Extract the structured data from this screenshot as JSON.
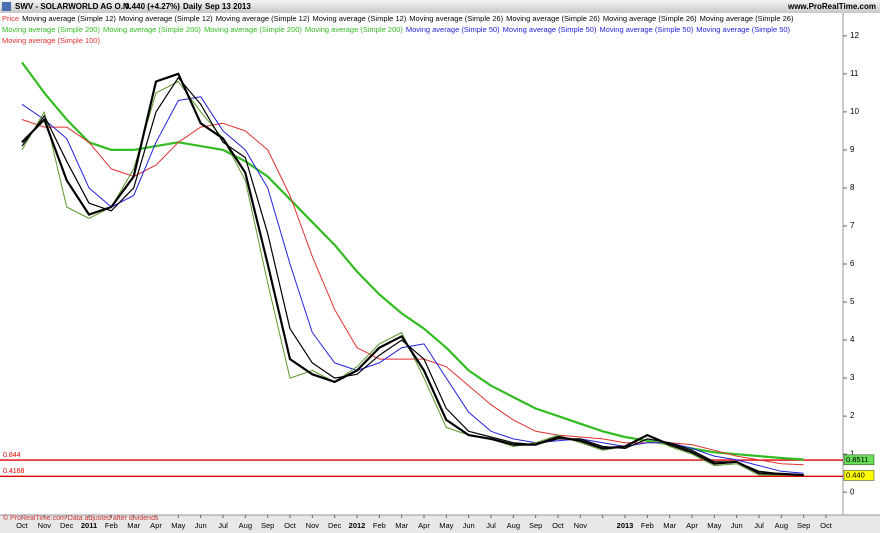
{
  "chart_data": {
    "type": "line",
    "title": "SWV - SOLARWORLD AG O.N.",
    "subtitle": "0.440 (+4.27%)",
    "period": "Daily",
    "date": "Sep 13 2013",
    "site": "www.ProRealTime.com",
    "footer": "© ProRealTime.com Data adjusted after dividends",
    "legend": [
      {
        "text": "Price",
        "color": "#e03030"
      },
      {
        "text": "Moving average (Simple 12)",
        "color": "#000000"
      },
      {
        "text": "Moving average (Simple 12)",
        "color": "#000000"
      },
      {
        "text": "Moving average (Simple 12)",
        "color": "#000000"
      },
      {
        "text": "Moving average (Simple 12)",
        "color": "#000000"
      },
      {
        "text": "Moving average (Simple 26)",
        "color": "#000000"
      },
      {
        "text": "Moving average (Simple 26)",
        "color": "#000000"
      },
      {
        "text": "Moving average (Simple 26)",
        "color": "#000000"
      },
      {
        "text": "Moving average (Simple 26)",
        "color": "#000000"
      },
      {
        "text": "Moving average (Simple 200)",
        "color": "#33bb22"
      },
      {
        "text": "Moving average (Simple 200)",
        "color": "#33bb22"
      },
      {
        "text": "Moving average (Simple 200)",
        "color": "#33bb22"
      },
      {
        "text": "Moving average (Simple 200)",
        "color": "#33bb22"
      },
      {
        "text": "Moving average (Simple 50)",
        "color": "#2222dd"
      },
      {
        "text": "Moving average (Simple 50)",
        "color": "#2222dd"
      },
      {
        "text": "Moving average (Simple 50)",
        "color": "#2222dd"
      },
      {
        "text": "Moving average (Simple 50)",
        "color": "#2222dd"
      },
      {
        "text": "Moving average (Simple 100)",
        "color": "#e03030"
      }
    ],
    "categories": [
      "Oct",
      "Nov",
      "Dec",
      "2011",
      "Feb",
      "Mar",
      "Apr",
      "May",
      "Jun",
      "Jul",
      "Aug",
      "Sep",
      "Oct",
      "Nov",
      "Dec",
      "2012",
      "Feb",
      "Mar",
      "Apr",
      "May",
      "Jun",
      "Jul",
      "Aug",
      "Sep",
      "Oct",
      "Nov",
      null,
      "2013",
      "Feb",
      "Mar",
      "Apr",
      "May",
      "Jun",
      "Jul",
      "Aug",
      "Sep",
      "Oct"
    ],
    "series": [
      {
        "name": "Moving average (Simple 200)",
        "color": "#33bb22",
        "width": 2.2,
        "values": [
          11.3,
          10.5,
          9.8,
          9.2,
          9.0,
          9.0,
          9.1,
          9.2,
          9.1,
          9.0,
          8.7,
          8.3,
          7.7,
          7.1,
          6.5,
          5.8,
          5.2,
          4.7,
          4.3,
          3.8,
          3.2,
          2.8,
          2.5,
          2.2,
          2.0,
          1.8,
          1.6,
          1.45,
          1.35,
          1.25,
          1.15,
          1.05,
          1.0,
          0.95,
          0.9,
          0.86,
          null
        ]
      },
      {
        "name": "Moving average (Simple 100)",
        "color": "#e03030",
        "width": 1,
        "values": [
          9.8,
          9.6,
          9.6,
          9.2,
          8.5,
          8.3,
          8.6,
          9.2,
          9.6,
          9.7,
          9.5,
          9.0,
          7.8,
          6.2,
          4.8,
          3.8,
          3.5,
          3.5,
          3.5,
          3.3,
          2.8,
          2.3,
          1.9,
          1.6,
          1.5,
          1.45,
          1.4,
          1.3,
          1.3,
          1.3,
          1.25,
          1.1,
          0.95,
          0.85,
          0.75,
          0.72,
          null
        ]
      },
      {
        "name": "Moving average (Simple 50)",
        "color": "#2222dd",
        "width": 1,
        "values": [
          10.2,
          9.8,
          9.3,
          8.0,
          7.5,
          7.8,
          9.2,
          10.3,
          10.4,
          9.5,
          9.0,
          8.0,
          6.0,
          4.2,
          3.4,
          3.2,
          3.4,
          3.8,
          3.9,
          3.0,
          2.1,
          1.6,
          1.4,
          1.3,
          1.35,
          1.4,
          1.3,
          1.2,
          1.3,
          1.3,
          1.15,
          0.95,
          0.85,
          0.7,
          0.55,
          0.5,
          null
        ]
      },
      {
        "name": "Price",
        "color": "#5d9a2e",
        "width": 1,
        "values": [
          9.0,
          10.0,
          7.5,
          7.2,
          7.5,
          8.5,
          10.5,
          10.8,
          10.0,
          9.3,
          8.2,
          5.5,
          3.0,
          3.2,
          2.9,
          3.3,
          3.9,
          4.2,
          3.0,
          1.7,
          1.5,
          1.4,
          1.2,
          1.3,
          1.5,
          1.3,
          1.1,
          1.2,
          1.5,
          1.2,
          1.0,
          0.7,
          0.75,
          0.45,
          0.45,
          0.44,
          null
        ]
      },
      {
        "name": "Moving average (Simple 26)",
        "color": "#000000",
        "width": 1.2,
        "values": [
          9.1,
          9.9,
          8.7,
          7.6,
          7.4,
          8.0,
          10.0,
          10.9,
          10.2,
          9.2,
          8.8,
          6.8,
          4.3,
          3.4,
          3.0,
          3.1,
          3.6,
          4.0,
          3.5,
          2.2,
          1.6,
          1.45,
          1.3,
          1.25,
          1.4,
          1.4,
          1.2,
          1.15,
          1.4,
          1.3,
          1.1,
          0.8,
          0.8,
          0.55,
          0.48,
          0.46,
          null
        ]
      },
      {
        "name": "Moving average (Simple 12)",
        "color": "#000000",
        "width": 2.2,
        "values": [
          9.2,
          9.8,
          8.2,
          7.3,
          7.5,
          8.3,
          10.8,
          11.0,
          9.7,
          9.3,
          8.4,
          6.0,
          3.5,
          3.1,
          2.9,
          3.2,
          3.8,
          4.1,
          3.2,
          1.9,
          1.5,
          1.4,
          1.25,
          1.25,
          1.45,
          1.35,
          1.15,
          1.2,
          1.5,
          1.25,
          1.05,
          0.75,
          0.8,
          0.5,
          0.48,
          0.45,
          null
        ]
      }
    ],
    "hlines": [
      0.844,
      0.4168
    ],
    "hline_color": "#e00000",
    "last_values": [
      {
        "value": 0.8511,
        "color": "#66dd55"
      },
      {
        "value": 0.44,
        "label": "0.440",
        "color": "#ffff00"
      }
    ],
    "ylim": [
      -0.6,
      12.6
    ],
    "yticks": [
      0,
      1,
      2,
      3,
      4,
      5,
      6,
      7,
      8,
      9,
      10,
      11,
      12
    ],
    "bold_categories": [
      "2011",
      "2012",
      "2013"
    ]
  }
}
